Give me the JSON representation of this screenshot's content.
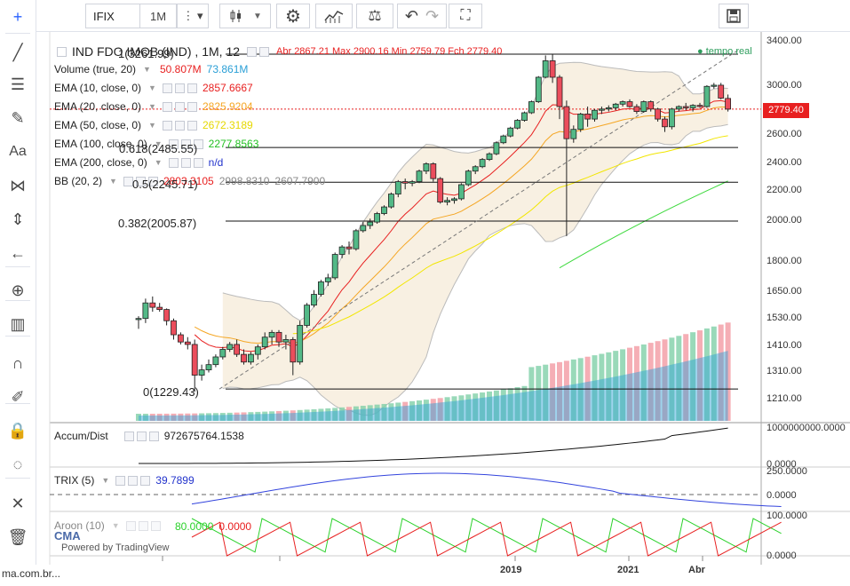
{
  "toolbar": {
    "symbol": "IFIX",
    "interval": "1M",
    "more_icon": "⋮",
    "chart_type_icon": "candles-icon",
    "settings_icon": "gear-icon",
    "indicators_icon": "indicators-icon",
    "compare_icon": "scale-icon",
    "undo_icon": "undo-icon",
    "redo_icon": "redo-icon",
    "fullscreen_icon": "fullscreen-icon",
    "save_icon": "save-icon"
  },
  "left_tools": [
    "crosshair-icon",
    "trend-line-icon",
    "horizontal-lines-icon",
    "brush-icon",
    "text-icon",
    "pattern-icon",
    "measure-icon",
    "back-arrow-icon",
    "zoom-icon",
    "bars-icon",
    "magnet-icon",
    "pencil-lock-icon",
    "lock-icon",
    "eye-icon",
    "remove-tools-icon",
    "trash-icon"
  ],
  "legend": {
    "title": "IND FDO IMOB (IND) , 1M, 12",
    "ohlc": "Abr 2867.21 Max 2900.16 Min 2759.79 Fch 2779.40",
    "live": "tempo real",
    "volume": {
      "name": "Volume (true, 20)",
      "v1": "50.807M",
      "v2": "73.861M"
    },
    "ema10": {
      "name": "EMA (10, close, 0)",
      "value": "2857.6667"
    },
    "ema20": {
      "name": "EMA (20, close, 0)",
      "value": "2825.9204"
    },
    "ema50": {
      "name": "EMA (50, close, 0)",
      "value": "2672.3189"
    },
    "ema100": {
      "name": "EMA (100, close, 0)",
      "value": "2277.8563"
    },
    "ema200": {
      "name": "EMA (200, close, 0)",
      "value": "n/d"
    },
    "bb": {
      "name": "BB (20, 2)",
      "v1": "2803.3105",
      "v2": "2998.8310",
      "v3": "2607.7900"
    }
  },
  "fib_labels": [
    "1(3261.99)",
    "0.618(2485.55)",
    "0.5(2245.71)",
    "0.382(2005.87)",
    "0(1229.43)"
  ],
  "price_axis": [
    "3400.00",
    "3000.00",
    "2600.00",
    "2400.00",
    "2200.00",
    "2000.00",
    "1800.00",
    "1650.00",
    "1530.00",
    "1410.00",
    "1310.00",
    "1210.00"
  ],
  "last_price": "2779.40",
  "accum": {
    "name": "Accum/Dist",
    "value": "972675764.1538",
    "axis_top": "1000000000.0000",
    "axis_bottom": "0.0000"
  },
  "trix": {
    "name": "TRIX (5)",
    "value": "39.7899",
    "axis_top": "250.0000",
    "axis_bottom": "0.0000"
  },
  "aroon": {
    "name": "Aroon (10)",
    "v1": "80.0000",
    "v2": "0.0000",
    "axis_top": "100.0000",
    "axis_bottom": "0.0000"
  },
  "time_axis": [
    "2019",
    "2021",
    "Abr"
  ],
  "watermark": {
    "brand": "CMA",
    "powered": "Powered by TradingView"
  },
  "footer": "ma.com.br...",
  "colors": {
    "up": "#53b987",
    "down": "#eb4d5c",
    "ema10": "#e82020",
    "ema20": "#f5a623",
    "ema50": "#f2e600",
    "ema100": "#3cd93c",
    "bb_fill": "#f5e9d6",
    "accent": "#2962ff"
  },
  "chart_data": {
    "type": "candlestick",
    "candles": [
      [
        1505,
        1520,
        1465,
        1510
      ],
      [
        1510,
        1600,
        1490,
        1580
      ],
      [
        1580,
        1610,
        1540,
        1560
      ],
      [
        1560,
        1580,
        1540,
        1550
      ],
      [
        1550,
        1555,
        1480,
        1500
      ],
      [
        1500,
        1510,
        1420,
        1440
      ],
      [
        1440,
        1450,
        1400,
        1410
      ],
      [
        1410,
        1430,
        1380,
        1400
      ],
      [
        1400,
        1420,
        1220,
        1280
      ],
      [
        1280,
        1320,
        1260,
        1300
      ],
      [
        1300,
        1340,
        1290,
        1320
      ],
      [
        1320,
        1360,
        1310,
        1350
      ],
      [
        1350,
        1390,
        1340,
        1380
      ],
      [
        1380,
        1410,
        1370,
        1400
      ],
      [
        1400,
        1420,
        1350,
        1360
      ],
      [
        1360,
        1380,
        1320,
        1330
      ],
      [
        1330,
        1370,
        1320,
        1360
      ],
      [
        1360,
        1400,
        1340,
        1390
      ],
      [
        1390,
        1450,
        1380,
        1430
      ],
      [
        1430,
        1460,
        1400,
        1450
      ],
      [
        1450,
        1460,
        1390,
        1410
      ],
      [
        1410,
        1440,
        1380,
        1420
      ],
      [
        1420,
        1430,
        1280,
        1330
      ],
      [
        1330,
        1500,
        1320,
        1480
      ],
      [
        1480,
        1580,
        1470,
        1570
      ],
      [
        1570,
        1640,
        1560,
        1620
      ],
      [
        1620,
        1690,
        1610,
        1680
      ],
      [
        1680,
        1720,
        1660,
        1700
      ],
      [
        1700,
        1830,
        1690,
        1820
      ],
      [
        1820,
        1870,
        1800,
        1860
      ],
      [
        1860,
        1890,
        1820,
        1850
      ],
      [
        1850,
        1960,
        1840,
        1950
      ],
      [
        1950,
        2000,
        1940,
        1980
      ],
      [
        1980,
        2020,
        1960,
        2000
      ],
      [
        2000,
        2060,
        1990,
        2050
      ],
      [
        2050,
        2100,
        2040,
        2090
      ],
      [
        2090,
        2180,
        2080,
        2170
      ],
      [
        2170,
        2260,
        2150,
        2250
      ],
      [
        2250,
        2270,
        2200,
        2240
      ],
      [
        2240,
        2260,
        2220,
        2250
      ],
      [
        2250,
        2330,
        2240,
        2320
      ],
      [
        2320,
        2380,
        2300,
        2370
      ],
      [
        2370,
        2380,
        2250,
        2270
      ],
      [
        2270,
        2280,
        2110,
        2120
      ],
      [
        2120,
        2150,
        2100,
        2130
      ],
      [
        2130,
        2150,
        2110,
        2140
      ],
      [
        2140,
        2240,
        2130,
        2230
      ],
      [
        2230,
        2330,
        2220,
        2320
      ],
      [
        2320,
        2360,
        2300,
        2350
      ],
      [
        2350,
        2410,
        2340,
        2400
      ],
      [
        2400,
        2450,
        2390,
        2440
      ],
      [
        2440,
        2530,
        2430,
        2520
      ],
      [
        2520,
        2580,
        2510,
        2570
      ],
      [
        2570,
        2640,
        2560,
        2630
      ],
      [
        2630,
        2700,
        2620,
        2690
      ],
      [
        2690,
        2760,
        2680,
        2750
      ],
      [
        2750,
        2850,
        2740,
        2840
      ],
      [
        2840,
        3060,
        2830,
        3050
      ],
      [
        3050,
        3250,
        3040,
        3200
      ],
      [
        3200,
        3260,
        3000,
        3050
      ],
      [
        3050,
        3070,
        2700,
        2800
      ],
      [
        2800,
        2850,
        1920,
        2550
      ],
      [
        2550,
        2650,
        2520,
        2620
      ],
      [
        2620,
        2750,
        2600,
        2740
      ],
      [
        2740,
        2800,
        2640,
        2700
      ],
      [
        2700,
        2780,
        2680,
        2770
      ],
      [
        2770,
        2800,
        2740,
        2780
      ],
      [
        2780,
        2810,
        2760,
        2790
      ],
      [
        2790,
        2830,
        2770,
        2820
      ],
      [
        2820,
        2850,
        2800,
        2840
      ],
      [
        2840,
        2860,
        2790,
        2800
      ],
      [
        2800,
        2820,
        2740,
        2760
      ],
      [
        2760,
        2850,
        2750,
        2840
      ],
      [
        2840,
        2850,
        2760,
        2780
      ],
      [
        2780,
        2790,
        2680,
        2700
      ],
      [
        2700,
        2720,
        2600,
        2640
      ],
      [
        2640,
        2790,
        2620,
        2780
      ],
      [
        2780,
        2810,
        2760,
        2800
      ],
      [
        2800,
        2830,
        2770,
        2790
      ],
      [
        2790,
        2820,
        2760,
        2810
      ],
      [
        2810,
        2830,
        2790,
        2800
      ],
      [
        2800,
        2980,
        2790,
        2970
      ],
      [
        2970,
        3000,
        2950,
        2980
      ],
      [
        2980,
        3000,
        2860,
        2870
      ],
      [
        2867.21,
        2900.16,
        2759.79,
        2779.4
      ]
    ]
  }
}
